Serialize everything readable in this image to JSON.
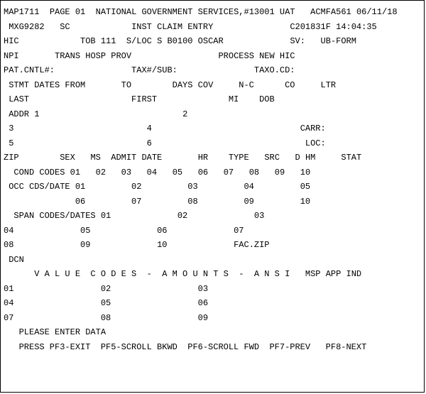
{
  "h": {
    "map": "MAP1711",
    "page": "PAGE 01",
    "org": "NATIONAL GOVERNMENT SERVICES,#13001 UAT",
    "prog": "ACMFA561",
    "date": "06/11/18",
    "mx": "MXG9282",
    "sc": "SC",
    "title": "INST CLAIM ENTRY",
    "c2": "C201831F",
    "time": "14:04:35"
  },
  "r3": {
    "hic": "HIC",
    "tob": "TOB 111",
    "sloc": "S/LOC S B0100 OSCAR",
    "sv": "SV:",
    "ub": "UB-FORM"
  },
  "r4": {
    "npi": "NPI",
    "thp": "TRANS HOSP PROV",
    "pnh": "PROCESS NEW HIC"
  },
  "r5": {
    "pc": "PAT.CNTL#:",
    "tax": "TAX#/SUB:",
    "txc": "TAXO.CD:"
  },
  "r6": {
    "sd": " STMT DATES FROM",
    "to": "TO",
    "dc": "DAYS COV",
    "nc": "N-C",
    "co": "CO",
    "ltr": "LTR"
  },
  "r7": {
    "last": " LAST",
    "first": "FIRST",
    "mi": "MI",
    "dob": "DOB"
  },
  "r8": {
    "a1": " ADDR 1",
    "n2": "2"
  },
  "r9": {
    "n3": " 3",
    "n4": "4",
    "carr": "CARR:"
  },
  "r10": {
    "n5": " 5",
    "n6": "6",
    "loc": "LOC:"
  },
  "r11": {
    "zip": "ZIP",
    "sex": "SEX",
    "ms": "MS",
    "ad": "ADMIT DATE",
    "hr": "HR",
    "type": "TYPE",
    "src": "SRC",
    "dhm": "D HM",
    "stat": "STAT"
  },
  "r12": {
    "cc": "  COND CODES",
    "n": [
      "01",
      "02",
      "03",
      "04",
      "05",
      "06",
      "07",
      "08",
      "09",
      "10"
    ]
  },
  "r13": {
    "oc": " OCC CDS/DATE",
    "n": [
      "01",
      "02",
      "03",
      "04",
      "05"
    ]
  },
  "r14": {
    "n": [
      "06",
      "07",
      "08",
      "09",
      "10"
    ]
  },
  "r15": {
    "sc": "  SPAN CODES/DATES",
    "n": [
      "01",
      "02",
      "03"
    ]
  },
  "r16": {
    "n": [
      "04",
      "05",
      "06",
      "07"
    ]
  },
  "r17": {
    "n": [
      "08",
      "09",
      "10"
    ],
    "fz": "FAC.ZIP"
  },
  "r18": {
    "dcn": " DCN"
  },
  "r19": {
    "vca": "V A L U E  C O D E S  -  A M O U N T S  -  A N S I",
    "msp": "MSP APP IND"
  },
  "r20": {
    "n": [
      "01",
      "02",
      "03"
    ]
  },
  "r21": {
    "n": [
      "04",
      "05",
      "06"
    ]
  },
  "r22": {
    "n": [
      "07",
      "08",
      "09"
    ]
  },
  "r23": {
    "ped": "   PLEASE ENTER DATA"
  },
  "r24": {
    "fk": "   PRESS PF3-EXIT  PF5-SCROLL BKWD  PF6-SCROLL FWD  PF7-PREV   PF8-NEXT"
  }
}
